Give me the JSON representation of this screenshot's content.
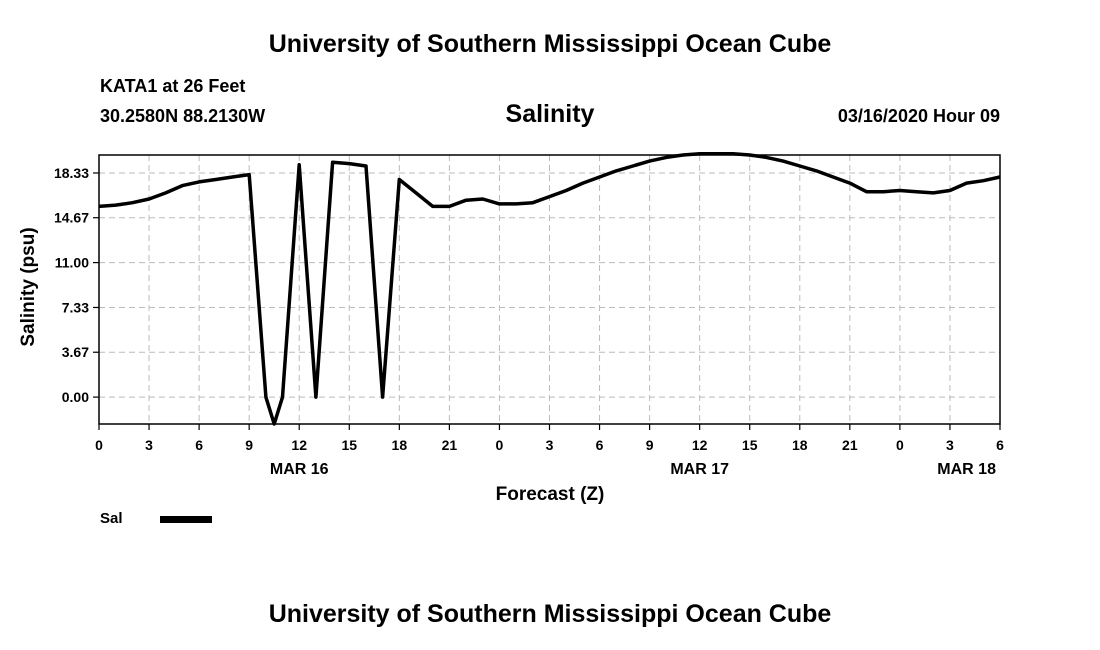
{
  "header": {
    "title": "University of Southern Mississippi Ocean Cube",
    "station": "KATA1 at 26 Feet",
    "coords": "30.2580N 88.2130W",
    "variable": "Salinity",
    "datetime": "03/16/2020 Hour 09"
  },
  "footer": {
    "title": "University of Southern Mississippi Ocean Cube"
  },
  "legend": {
    "label": "Sal"
  },
  "chart_data": {
    "type": "line",
    "xlabel": "Forecast (Z)",
    "ylabel": "Salinity (psu)",
    "ylim": [
      -2.2,
      19.8
    ],
    "xlim": [
      0,
      54
    ],
    "yticks": [
      "0.00",
      "3.67",
      "7.33",
      "11.00",
      "14.67",
      "18.33"
    ],
    "ytick_values": [
      0.0,
      3.67,
      7.33,
      11.0,
      14.67,
      18.33
    ],
    "xticks": [
      "0",
      "3",
      "6",
      "9",
      "12",
      "15",
      "18",
      "21",
      "0",
      "3",
      "6",
      "9",
      "12",
      "15",
      "18",
      "21",
      "0",
      "3",
      "6"
    ],
    "xtick_hours": [
      0,
      3,
      6,
      9,
      12,
      15,
      18,
      21,
      24,
      27,
      30,
      33,
      36,
      39,
      42,
      45,
      48,
      51,
      54
    ],
    "date_labels": [
      {
        "label": "MAR 16",
        "hour": 12
      },
      {
        "label": "MAR 17",
        "hour": 36
      },
      {
        "label": "MAR 18",
        "hour": 52
      }
    ],
    "grid": true,
    "legend_position": "bottom-left",
    "colors": {
      "series": "#000000",
      "grid": "#bbbbbb"
    },
    "series": [
      {
        "name": "Sal",
        "x": [
          0,
          1,
          2,
          3,
          4,
          5,
          6,
          7,
          8,
          9,
          10,
          10.5,
          11,
          12,
          13,
          14,
          15,
          16,
          17,
          18,
          19,
          20,
          21,
          22,
          23,
          24,
          25,
          26,
          27,
          28,
          29,
          30,
          31,
          32,
          33,
          34,
          35,
          36,
          37,
          38,
          39,
          40,
          41,
          42,
          43,
          44,
          45,
          46,
          47,
          48,
          49,
          50,
          51,
          52,
          53,
          54
        ],
        "y": [
          15.6,
          15.7,
          15.9,
          16.2,
          16.7,
          17.3,
          17.6,
          17.8,
          18.0,
          18.2,
          0.0,
          -2.2,
          0.0,
          19.0,
          0.0,
          19.2,
          19.1,
          18.9,
          0.0,
          17.8,
          16.7,
          15.6,
          15.6,
          16.1,
          16.2,
          15.8,
          15.8,
          15.9,
          16.4,
          16.9,
          17.5,
          18.0,
          18.5,
          18.9,
          19.3,
          19.6,
          19.8,
          19.9,
          19.9,
          19.9,
          19.8,
          19.6,
          19.3,
          18.9,
          18.5,
          18.0,
          17.5,
          16.8,
          16.8,
          16.9,
          16.8,
          16.7,
          16.9,
          17.5,
          17.7,
          18.0
        ]
      }
    ]
  }
}
